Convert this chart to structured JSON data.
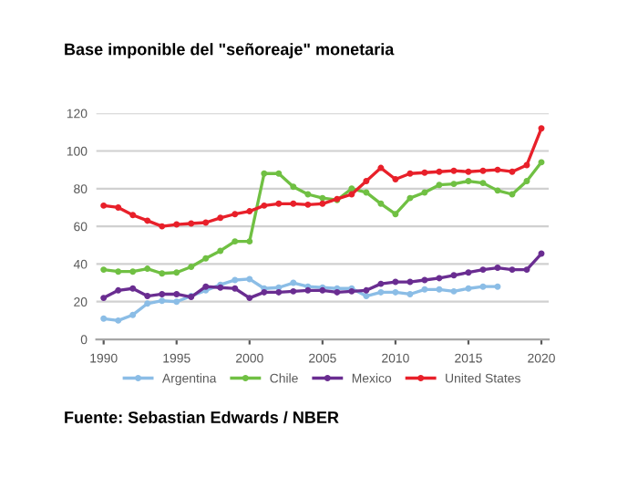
{
  "chart_data": {
    "type": "line",
    "title": "Base imponible del \"señoreaje\" monetaria",
    "x": [
      1990,
      1991,
      1992,
      1993,
      1994,
      1995,
      1996,
      1997,
      1998,
      1999,
      2000,
      2001,
      2002,
      2003,
      2004,
      2005,
      2006,
      2007,
      2008,
      2009,
      2010,
      2011,
      2012,
      2013,
      2014,
      2015,
      2016,
      2017,
      2018,
      2019,
      2020
    ],
    "series": [
      {
        "name": "Argentina",
        "color": "#8bbde6",
        "values": [
          11,
          10,
          13,
          19,
          20.5,
          20,
          23,
          26,
          29,
          31.5,
          32,
          27,
          27.5,
          30,
          28,
          27.5,
          27,
          27,
          23,
          25,
          25,
          24,
          26.5,
          26.5,
          25.5,
          27,
          28,
          28,
          null,
          null,
          null
        ]
      },
      {
        "name": "Chile",
        "color": "#70c043",
        "values": [
          37,
          36,
          36,
          37.5,
          35,
          35.5,
          38.5,
          43,
          47,
          52,
          52,
          88,
          88,
          81,
          77,
          75,
          74,
          80,
          78,
          72,
          66.5,
          75,
          78,
          82,
          82.5,
          84,
          83,
          79,
          77,
          84,
          94
        ]
      },
      {
        "name": "Mexico",
        "color": "#6a2d91",
        "values": [
          22,
          26,
          27,
          23,
          24,
          24,
          22.5,
          28,
          27.5,
          27,
          22,
          25,
          25,
          25.5,
          26,
          26,
          25,
          25.5,
          26,
          29.5,
          30.5,
          30.5,
          31.5,
          32.5,
          34,
          35.5,
          37,
          38,
          37,
          37,
          45.5
        ]
      },
      {
        "name": "United States",
        "color": "#e8202a",
        "values": [
          71,
          70,
          66,
          63,
          60,
          61,
          61.5,
          62,
          64.5,
          66.5,
          68,
          71,
          72,
          72,
          71.5,
          72,
          74.5,
          77,
          84,
          91,
          85,
          88,
          88.5,
          89,
          89.5,
          89,
          89.5,
          90,
          89,
          92.5,
          112
        ]
      }
    ],
    "xlim": [
      1989.5,
      2020.5
    ],
    "xticks": [
      1990,
      1995,
      2000,
      2005,
      2010,
      2015,
      2020
    ],
    "ylim": [
      0,
      120
    ],
    "yticks": [
      0,
      20,
      40,
      60,
      80,
      100,
      120
    ],
    "grid": "y",
    "legend": "bottom",
    "marker": "circle",
    "line_style": "solid",
    "annotations": [
      "Fuente: Sebastian Edwards / NBER"
    ]
  }
}
